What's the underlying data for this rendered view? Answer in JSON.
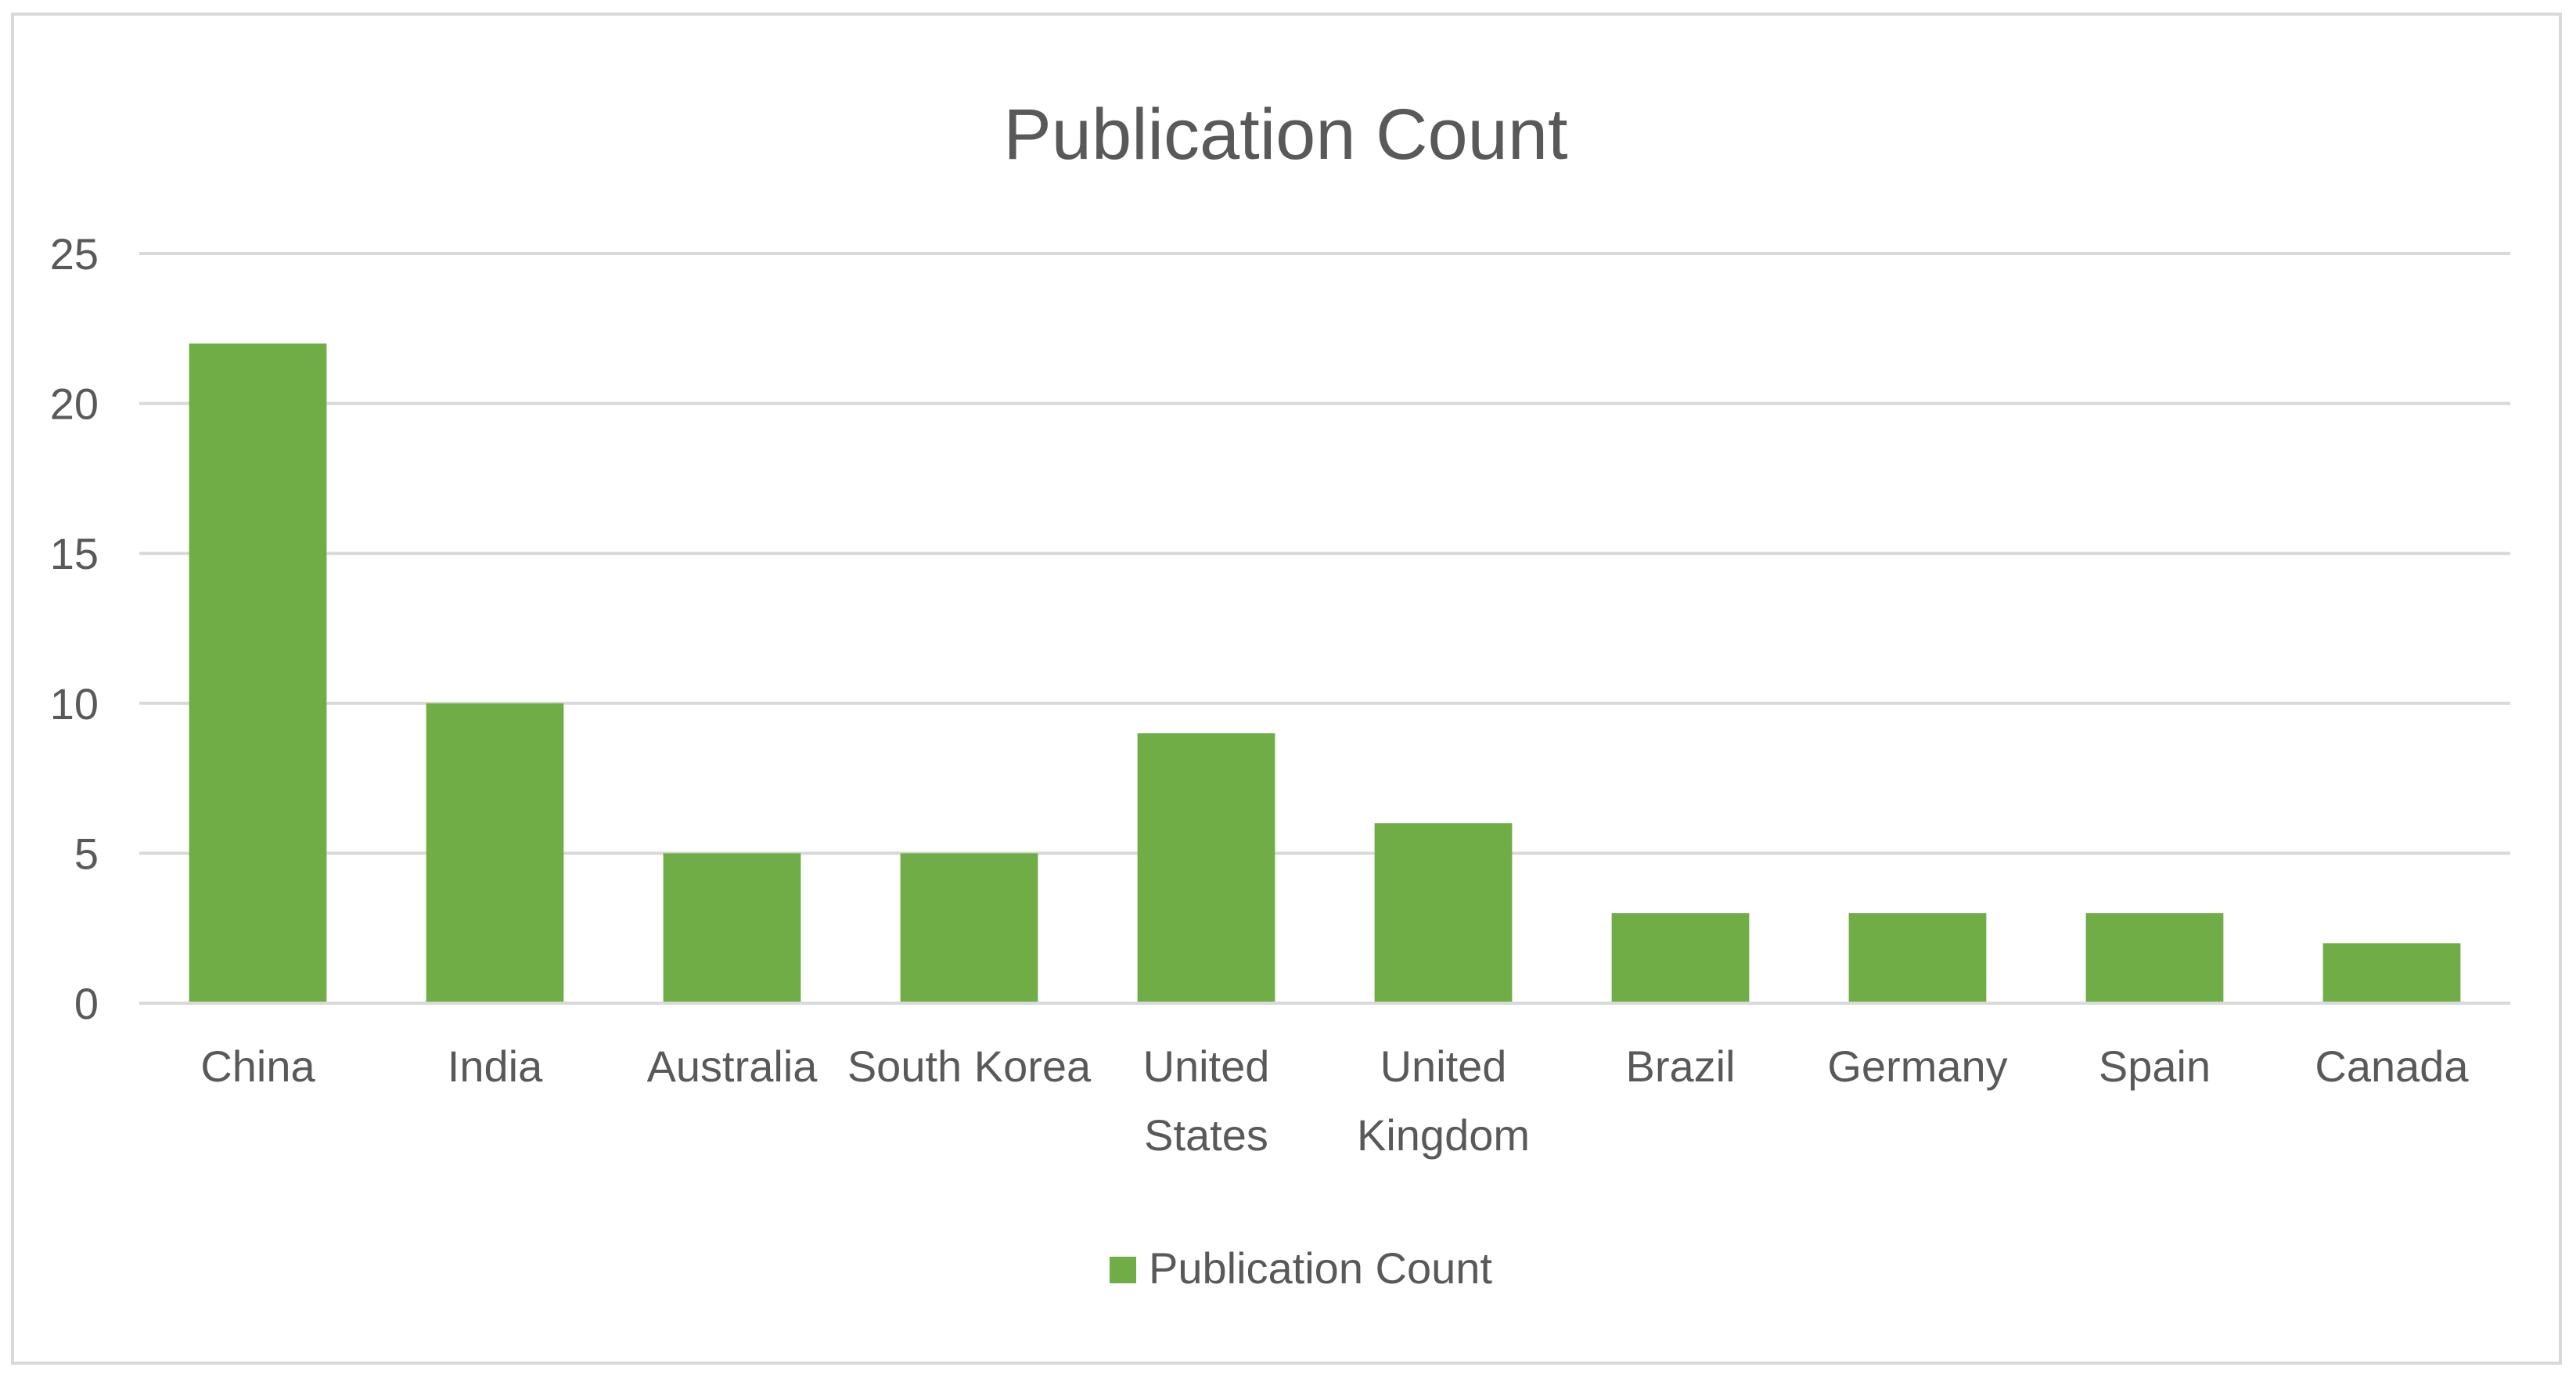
{
  "chart_data": {
    "type": "bar",
    "title": "Publication Count",
    "xlabel": "",
    "ylabel": "",
    "categories": [
      [
        "China"
      ],
      [
        "India"
      ],
      [
        "Australia"
      ],
      [
        "South Korea"
      ],
      [
        "United",
        "States"
      ],
      [
        "United",
        "Kingdom"
      ],
      [
        "Brazil"
      ],
      [
        "Germany"
      ],
      [
        "Spain"
      ],
      [
        "Canada"
      ]
    ],
    "series": [
      {
        "name": "Publication Count",
        "values": [
          22,
          10,
          5,
          5,
          9,
          6,
          3,
          3,
          3,
          2
        ]
      }
    ],
    "ylim": [
      0,
      25
    ],
    "yticks": [
      0,
      5,
      10,
      15,
      20,
      25
    ],
    "grid": true,
    "legend_position": "bottom",
    "colors": {
      "bar": "#70ad47",
      "grid": "#d9d9d9",
      "text": "#595959",
      "border": "#d9d9d9"
    }
  }
}
